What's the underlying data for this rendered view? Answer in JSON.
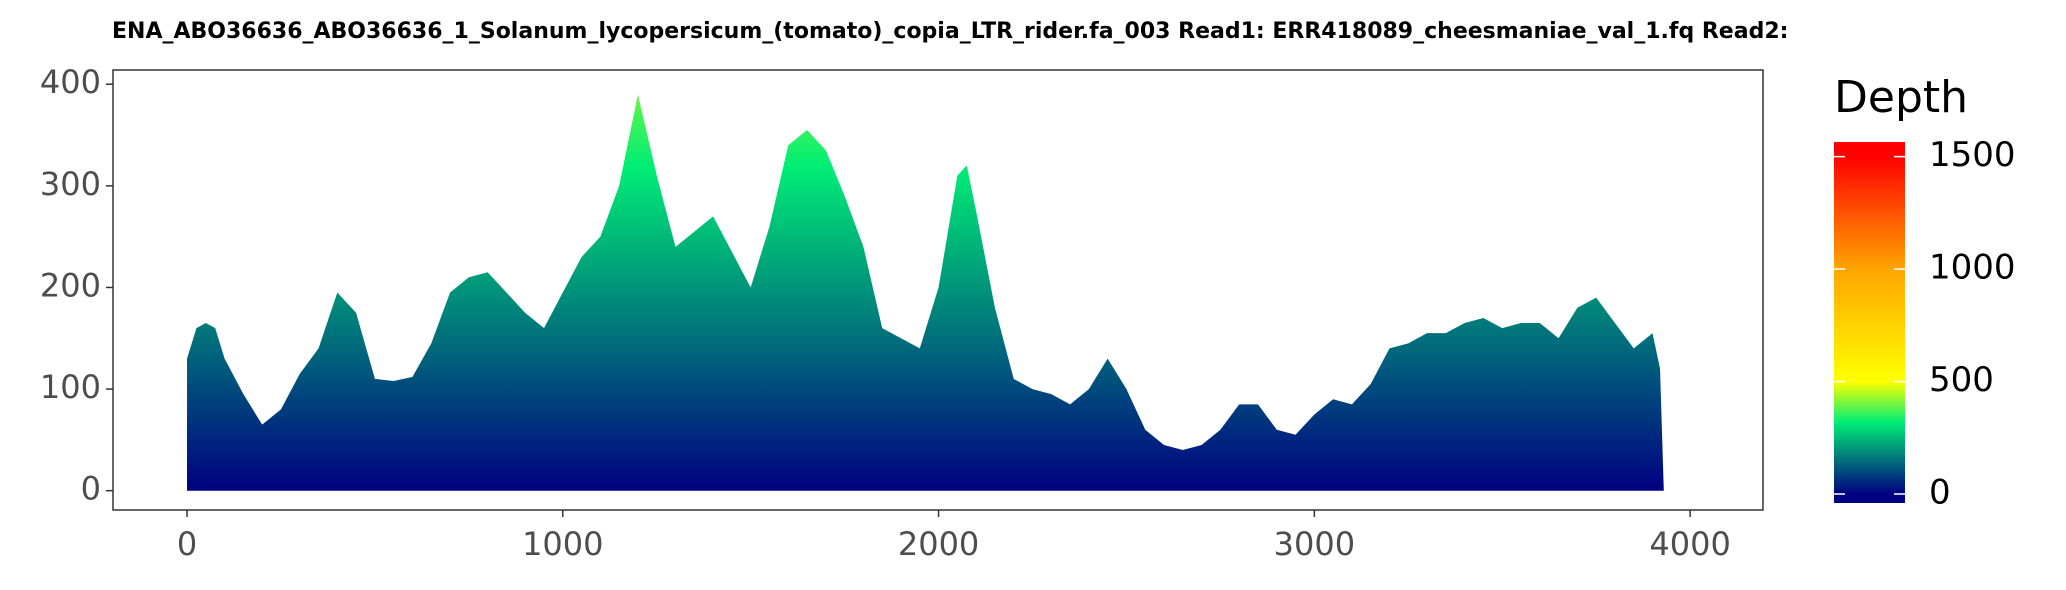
{
  "chart_data": {
    "type": "area",
    "title": "ENA_ABO36636_ABO36636_1_Solanum_lycopersicum_(tomato)_copia_LTR_rider.fa_003    Read1: ERR418089_cheesmaniae_val_1.fq    Read2: ",
    "x": [
      0,
      25,
      50,
      75,
      100,
      150,
      200,
      250,
      300,
      350,
      400,
      450,
      500,
      550,
      600,
      650,
      700,
      750,
      800,
      850,
      900,
      950,
      1000,
      1050,
      1100,
      1150,
      1200,
      1250,
      1300,
      1350,
      1400,
      1450,
      1500,
      1550,
      1600,
      1650,
      1700,
      1750,
      1800,
      1850,
      1900,
      1950,
      2000,
      2050,
      2075,
      2100,
      2150,
      2200,
      2250,
      2300,
      2350,
      2400,
      2450,
      2500,
      2550,
      2600,
      2650,
      2700,
      2750,
      2800,
      2850,
      2900,
      2950,
      3000,
      3050,
      3100,
      3150,
      3200,
      3250,
      3300,
      3350,
      3400,
      3450,
      3500,
      3550,
      3600,
      3650,
      3700,
      3750,
      3800,
      3850,
      3900,
      3920,
      3930,
      3990
    ],
    "values": [
      130,
      160,
      165,
      160,
      130,
      95,
      65,
      80,
      115,
      140,
      195,
      175,
      110,
      108,
      112,
      145,
      195,
      210,
      215,
      195,
      175,
      160,
      195,
      230,
      250,
      300,
      390,
      310,
      240,
      255,
      270,
      235,
      200,
      260,
      340,
      355,
      335,
      290,
      240,
      160,
      150,
      140,
      200,
      310,
      320,
      275,
      180,
      110,
      100,
      95,
      85,
      100,
      130,
      100,
      60,
      45,
      40,
      45,
      60,
      85,
      85,
      60,
      55,
      75,
      90,
      85,
      105,
      140,
      145,
      155,
      155,
      165,
      170,
      160,
      165,
      165,
      150,
      180,
      190,
      165,
      140,
      155,
      120,
      0,
      0
    ],
    "xlim": [
      -197,
      4194
    ],
    "ylim": [
      -19,
      414
    ],
    "xticks": [
      0,
      1000,
      2000,
      3000,
      4000
    ],
    "yticks": [
      0,
      100,
      200,
      300,
      400
    ],
    "grid": false,
    "legend_title": "Depth",
    "colorbar_lim": [
      -40,
      1565
    ],
    "colorbar_ticks": [
      0,
      500,
      1000,
      1500
    ],
    "colormap": [
      {
        "value": 0,
        "color": "#000080"
      },
      {
        "value": 320,
        "color": "#00ee76"
      },
      {
        "value": 500,
        "color": "#ffff00"
      },
      {
        "value": 1000,
        "color": "#ffa500"
      },
      {
        "value": 1500,
        "color": "#ff0000"
      }
    ]
  }
}
